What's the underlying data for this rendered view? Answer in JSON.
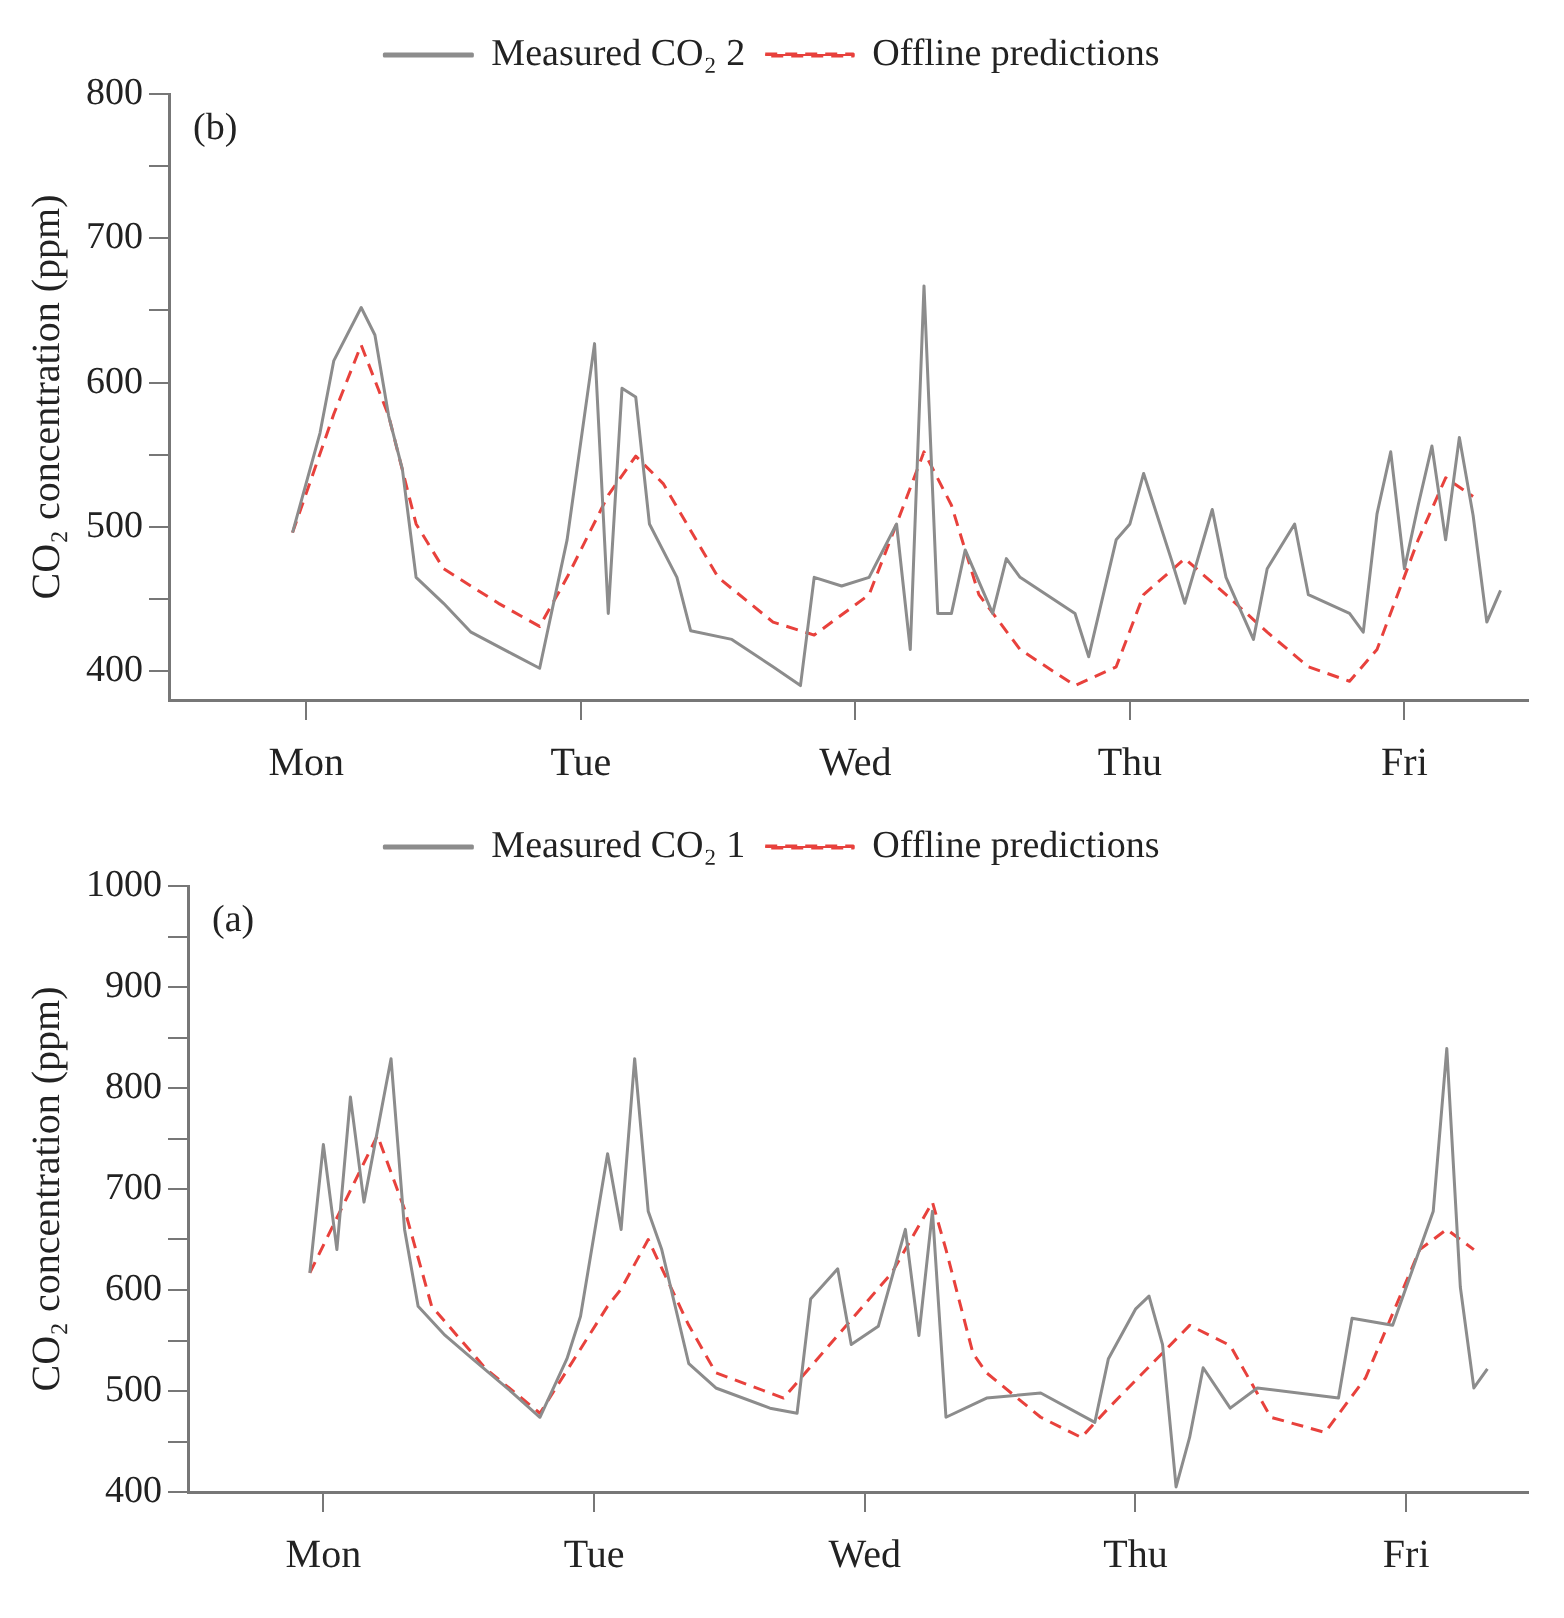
{
  "chart_data": [
    {
      "type": "line",
      "ylabel": "CO₂ concentration (ppm)",
      "annotations": [
        "(b)"
      ],
      "legend": "top",
      "grid": false,
      "marker": "none",
      "categories": [
        null,
        null,
        null,
        null,
        null,
        null,
        null,
        null,
        null,
        null,
        "Mon",
        null,
        null,
        null,
        null,
        null,
        null,
        null,
        null,
        null,
        null,
        null,
        null,
        null,
        null,
        null,
        null,
        null,
        null,
        null,
        "Tue",
        null,
        null,
        null,
        null,
        null,
        null,
        null,
        null,
        null,
        null,
        null,
        null,
        null,
        null,
        null,
        null,
        null,
        null,
        null,
        "Wed",
        null,
        null,
        null,
        null,
        null,
        null,
        null,
        null,
        null,
        null,
        null,
        null,
        null,
        null,
        null,
        null,
        null,
        null,
        null,
        "Thu",
        null,
        null,
        null,
        null,
        null,
        null,
        null,
        null,
        null,
        null,
        null,
        null,
        null,
        null,
        null,
        null,
        null,
        null,
        null,
        "Fri",
        null,
        null,
        null,
        null,
        null,
        null,
        null,
        null,
        null
      ],
      "ylim": [
        380,
        800
      ],
      "yticks": [
        400,
        {
          "value": 450,
          "label": null
        },
        500,
        {
          "value": 550,
          "label": null
        },
        600,
        {
          "value": 650,
          "label": null
        },
        700,
        {
          "value": 750,
          "label": null
        },
        800
      ],
      "series": [
        {
          "name": "Measured CO₂ 2",
          "color": "#8c8c8c",
          "line_style": "solid",
          "values": [
            null,
            null,
            null,
            null,
            null,
            null,
            null,
            null,
            null,
            496,
            null,
            565,
            615,
            null,
            652,
            633,
            577,
            540,
            465,
            null,
            447,
            null,
            427,
            null,
            null,
            412,
            null,
            402,
            null,
            491,
            null,
            627,
            440,
            596,
            590,
            502,
            null,
            465,
            428,
            null,
            null,
            422,
            null,
            null,
            403,
            null,
            390,
            465,
            null,
            459,
            null,
            465,
            null,
            502,
            415,
            667,
            440,
            440,
            484,
            null,
            440,
            478,
            465,
            null,
            null,
            null,
            440,
            410,
            null,
            491,
            502,
            537,
            null,
            478,
            447,
            null,
            512,
            465,
            null,
            422,
            471,
            null,
            502,
            453,
            null,
            null,
            440,
            427,
            509,
            552,
            471,
            515,
            556,
            491,
            562,
            508,
            434,
            456,
            null,
            null
          ]
        },
        {
          "name": "Offline predictions",
          "color": "#e8413c",
          "line_style": "dashed",
          "values": [
            null,
            null,
            null,
            null,
            null,
            null,
            null,
            null,
            null,
            496,
            null,
            null,
            578,
            null,
            626,
            null,
            577,
            null,
            502,
            null,
            471,
            null,
            null,
            null,
            447,
            null,
            null,
            431,
            null,
            465,
            null,
            null,
            522,
            null,
            549,
            null,
            530,
            null,
            null,
            null,
            465,
            null,
            null,
            null,
            434,
            null,
            null,
            425,
            null,
            null,
            null,
            453,
            null,
            502,
            null,
            552,
            null,
            515,
            null,
            453,
            null,
            null,
            415,
            null,
            null,
            null,
            390,
            null,
            null,
            403,
            null,
            453,
            null,
            null,
            478,
            null,
            null,
            453,
            null,
            null,
            427,
            null,
            null,
            403,
            null,
            null,
            393,
            null,
            415,
            null,
            null,
            491,
            null,
            534,
            null,
            521,
            null,
            null,
            null,
            null
          ]
        }
      ]
    },
    {
      "type": "line",
      "ylabel": "CO₂ concentration (ppm)",
      "annotations": [
        "(a)"
      ],
      "legend": "top",
      "grid": false,
      "marker": "none",
      "categories": [
        null,
        null,
        null,
        null,
        null,
        null,
        null,
        null,
        null,
        null,
        "Mon",
        null,
        null,
        null,
        null,
        null,
        null,
        null,
        null,
        null,
        null,
        null,
        null,
        null,
        null,
        null,
        null,
        null,
        null,
        null,
        "Tue",
        null,
        null,
        null,
        null,
        null,
        null,
        null,
        null,
        null,
        null,
        null,
        null,
        null,
        null,
        null,
        null,
        null,
        null,
        null,
        "Wed",
        null,
        null,
        null,
        null,
        null,
        null,
        null,
        null,
        null,
        null,
        null,
        null,
        null,
        null,
        null,
        null,
        null,
        null,
        null,
        "Thu",
        null,
        null,
        null,
        null,
        null,
        null,
        null,
        null,
        null,
        null,
        null,
        null,
        null,
        null,
        null,
        null,
        null,
        null,
        null,
        "Fri",
        null,
        null,
        null,
        null,
        null,
        null,
        null,
        null,
        null
      ],
      "ylim": [
        400,
        1000
      ],
      "yticks": [
        400,
        {
          "value": 450,
          "label": null
        },
        500,
        {
          "value": 550,
          "label": null
        },
        600,
        {
          "value": 650,
          "label": null
        },
        700,
        {
          "value": 750,
          "label": null
        },
        800,
        {
          "value": 850,
          "label": null
        },
        900,
        {
          "value": 950,
          "label": null
        },
        1000
      ],
      "series": [
        {
          "name": "Measured CO₂ 1",
          "color": "#8c8c8c",
          "line_style": "solid",
          "values": [
            null,
            null,
            null,
            null,
            null,
            null,
            null,
            null,
            null,
            617,
            744,
            640,
            791,
            687,
            null,
            829,
            660,
            584,
            null,
            555,
            null,
            532,
            null,
            null,
            498,
            null,
            474,
            null,
            532,
            574,
            null,
            735,
            660,
            829,
            678,
            640,
            null,
            527,
            null,
            503,
            null,
            null,
            null,
            483,
            null,
            478,
            591,
            null,
            621,
            546,
            null,
            564,
            null,
            660,
            555,
            678,
            474,
            null,
            null,
            493,
            null,
            null,
            null,
            498,
            null,
            null,
            null,
            469,
            532,
            null,
            581,
            594,
            546,
            405,
            454,
            523,
            null,
            483,
            null,
            503,
            null,
            null,
            null,
            null,
            null,
            493,
            572,
            null,
            null,
            565,
            null,
            null,
            678,
            839,
            603,
            503,
            522,
            null,
            null,
            null
          ]
        },
        {
          "name": "Offline predictions",
          "color": "#e8413c",
          "line_style": "dashed",
          "values": [
            null,
            null,
            null,
            null,
            null,
            null,
            null,
            null,
            null,
            617,
            null,
            null,
            null,
            null,
            753,
            null,
            680,
            null,
            584,
            null,
            null,
            null,
            522,
            null,
            null,
            null,
            478,
            null,
            null,
            null,
            null,
            584,
            601,
            null,
            650,
            null,
            null,
            565,
            null,
            518,
            null,
            null,
            null,
            null,
            493,
            null,
            null,
            null,
            null,
            null,
            null,
            null,
            617,
            null,
            null,
            687,
            640,
            null,
            537,
            518,
            null,
            null,
            null,
            474,
            null,
            null,
            454,
            null,
            483,
            null,
            null,
            null,
            null,
            null,
            565,
            null,
            null,
            545,
            null,
            null,
            474,
            null,
            null,
            null,
            459,
            null,
            null,
            513,
            null,
            null,
            null,
            640,
            null,
            660,
            null,
            640,
            null,
            null,
            null,
            null
          ]
        }
      ]
    }
  ]
}
